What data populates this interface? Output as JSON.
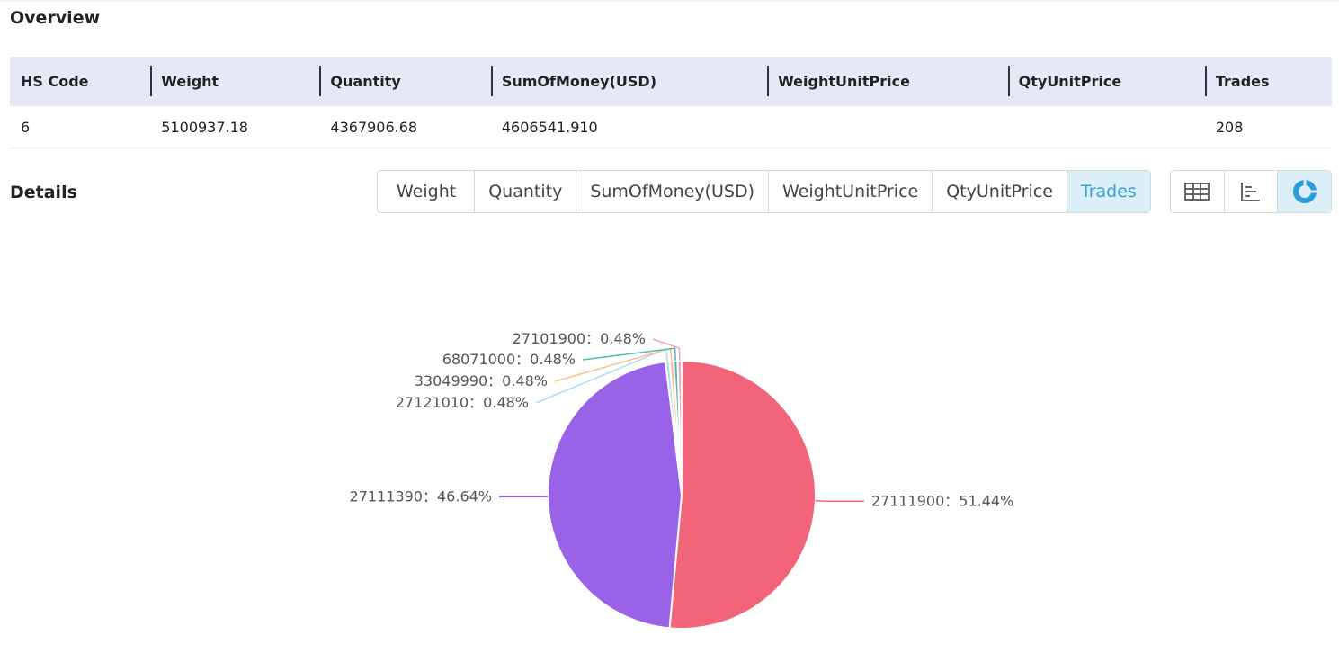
{
  "header": {
    "title": "Overview"
  },
  "table": {
    "columns": [
      "HS Code",
      "Weight",
      "Quantity",
      "SumOfMoney(USD)",
      "WeightUnitPrice",
      "QtyUnitPrice",
      "Trades"
    ],
    "rows": [
      [
        "6",
        "5100937.18",
        "4367906.68",
        "4606541.910",
        null,
        null,
        "208"
      ]
    ]
  },
  "details": {
    "title": "Details",
    "tabs": [
      "Weight",
      "Quantity",
      "SumOfMoney(USD)",
      "WeightUnitPrice",
      "QtyUnitPrice",
      "Trades"
    ],
    "active_tab": 5
  },
  "chart_data": {
    "type": "pie",
    "categories": [
      "27111900",
      "27111390",
      "27121010",
      "33049990",
      "68071000",
      "27101900"
    ],
    "values": [
      51.44,
      46.64,
      0.48,
      0.48,
      0.48,
      0.48
    ],
    "value_labels": [
      "51.44%",
      "46.64%",
      "0.48%",
      "0.48%",
      "0.48%",
      "0.48%"
    ],
    "label_separator": "：",
    "colors": [
      "#f2647a",
      "#9a62e6",
      "#a9def4",
      "#f8c08c",
      "#55b8b0",
      "#f5a3b6"
    ]
  }
}
